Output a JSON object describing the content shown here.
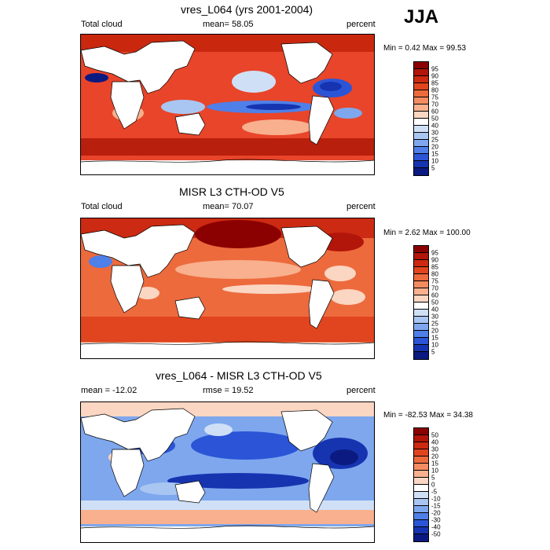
{
  "season": "JJA",
  "panels": [
    {
      "title": "vres_L064 (yrs 2001-2004)",
      "left_label": "Total cloud",
      "center_label": "mean=  58.05",
      "right_label": "percent",
      "minmax": "Min =   0.42 Max =  99.53",
      "colorbar": {
        "labels": [
          "95",
          "90",
          "85",
          "80",
          "75",
          "70",
          "60",
          "50",
          "40",
          "30",
          "25",
          "20",
          "15",
          "10",
          "5"
        ],
        "colors": [
          "#8b0000",
          "#b2150a",
          "#cc2a12",
          "#e0451f",
          "#ed6a3d",
          "#f48c61",
          "#f8b08e",
          "#fbd6c2",
          "#ffffff",
          "#cfe0f6",
          "#a9c6f2",
          "#7ea7ee",
          "#4f7fe8",
          "#2b55d6",
          "#1634b0",
          "#0a1a80"
        ]
      },
      "description_colors": {
        "ocean": "#e8452a",
        "band_high": "#b81f0c",
        "low": "#1f4fd8"
      }
    },
    {
      "title": "MISR L3 CTH-OD V5",
      "left_label": "Total cloud",
      "center_label": "mean=  70.07",
      "right_label": "percent",
      "minmax": "Min =   2.62 Max = 100.00",
      "colorbar": {
        "labels": [
          "95",
          "90",
          "85",
          "80",
          "75",
          "70",
          "60",
          "50",
          "40",
          "30",
          "25",
          "20",
          "15",
          "10",
          "5"
        ],
        "colors": [
          "#8b0000",
          "#b2150a",
          "#cc2a12",
          "#e0451f",
          "#ed6a3d",
          "#f48c61",
          "#f8b08e",
          "#fbd6c2",
          "#ffffff",
          "#cfe0f6",
          "#a9c6f2",
          "#7ea7ee",
          "#4f7fe8",
          "#2b55d6",
          "#1634b0",
          "#0a1a80"
        ]
      }
    },
    {
      "title": "vres_L064 - MISR L3 CTH-OD V5",
      "left_label": "mean = -12.02",
      "center_label": "rmse =  19.52",
      "right_label": "percent",
      "minmax": "Min = -82.53 Max =  34.38",
      "colorbar": {
        "labels": [
          "50",
          "40",
          "30",
          "20",
          "15",
          "10",
          "5",
          "0",
          "-5",
          "-10",
          "-15",
          "-20",
          "-30",
          "-40",
          "-50"
        ],
        "colors": [
          "#8b0000",
          "#b2150a",
          "#cc2a12",
          "#e0451f",
          "#ed6a3d",
          "#f48c61",
          "#f8b08e",
          "#fbd6c2",
          "#ffffff",
          "#cfe0f6",
          "#a9c6f2",
          "#7ea7ee",
          "#4f7fe8",
          "#2b55d6",
          "#1634b0",
          "#0a1a80"
        ]
      }
    }
  ]
}
